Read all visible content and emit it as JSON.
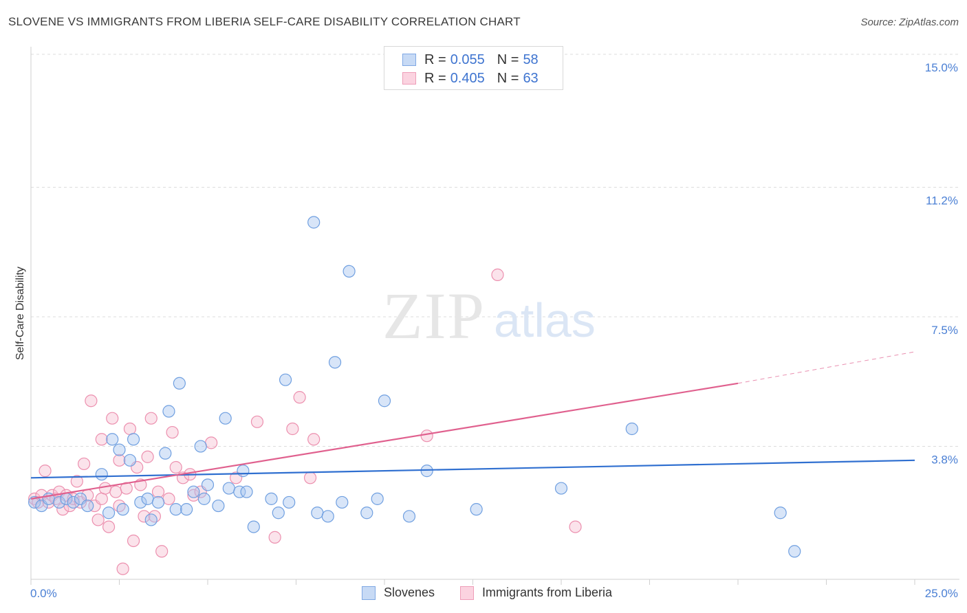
{
  "header": {
    "title": "SLOVENE VS IMMIGRANTS FROM LIBERIA SELF-CARE DISABILITY CORRELATION CHART",
    "source": "Source: ZipAtlas.com"
  },
  "watermark": {
    "zip": "ZIP",
    "atlas": "atlas"
  },
  "legend": {
    "rows": [
      {
        "r_label": "R =",
        "r_value": "0.055",
        "n_label": "N =",
        "n_value": "58",
        "color": "#a9c6ef"
      },
      {
        "r_label": "R =",
        "r_value": "0.405",
        "n_label": "N =",
        "n_value": "63",
        "color": "#f5b8cb"
      }
    ]
  },
  "bottom_legend": {
    "slovenes": "Slovenes",
    "liberia": "Immigrants from Liberia"
  },
  "colors": {
    "slovene_fill": "#a9c6ef",
    "slovene_stroke": "#6f9fe0",
    "slovene_line": "#2f6fd0",
    "liberia_fill": "#f7c2d3",
    "liberia_stroke": "#ec8fae",
    "liberia_line": "#e0608e",
    "tick": "#4a7fd4"
  },
  "chart_data": {
    "type": "scatter",
    "title": "SLOVENE VS IMMIGRANTS FROM LIBERIA SELF-CARE DISABILITY CORRELATION CHART",
    "xlabel": "",
    "ylabel": "Self-Care Disability",
    "xlim": [
      0,
      25
    ],
    "ylim": [
      0,
      15
    ],
    "x_tick_labels": [
      "0.0%",
      "25.0%"
    ],
    "y_ticks": [
      3.8,
      7.5,
      11.2,
      15.0
    ],
    "y_tick_labels": [
      "3.8%",
      "7.5%",
      "11.2%",
      "15.0%"
    ],
    "grid": "horizontal dashed",
    "legend_position": "top-center",
    "series": [
      {
        "name": "Slovenes",
        "points": [
          [
            0.1,
            2.2
          ],
          [
            0.3,
            2.1
          ],
          [
            0.5,
            2.3
          ],
          [
            0.8,
            2.2
          ],
          [
            1.0,
            2.3
          ],
          [
            1.2,
            2.2
          ],
          [
            1.4,
            2.3
          ],
          [
            1.6,
            2.1
          ],
          [
            2.0,
            3.0
          ],
          [
            2.2,
            1.9
          ],
          [
            2.3,
            4.0
          ],
          [
            2.5,
            3.7
          ],
          [
            2.6,
            2.0
          ],
          [
            2.8,
            3.4
          ],
          [
            2.9,
            4.0
          ],
          [
            3.1,
            2.2
          ],
          [
            3.3,
            2.3
          ],
          [
            3.4,
            1.7
          ],
          [
            3.6,
            2.2
          ],
          [
            3.8,
            3.6
          ],
          [
            3.9,
            4.8
          ],
          [
            4.1,
            2.0
          ],
          [
            4.2,
            5.6
          ],
          [
            4.4,
            2.0
          ],
          [
            4.6,
            2.5
          ],
          [
            4.8,
            3.8
          ],
          [
            4.9,
            2.3
          ],
          [
            5.0,
            2.7
          ],
          [
            5.3,
            2.1
          ],
          [
            5.5,
            4.6
          ],
          [
            5.6,
            2.6
          ],
          [
            5.9,
            2.5
          ],
          [
            6.0,
            3.1
          ],
          [
            6.1,
            2.5
          ],
          [
            6.3,
            1.5
          ],
          [
            6.8,
            2.3
          ],
          [
            7.0,
            1.9
          ],
          [
            7.2,
            5.7
          ],
          [
            7.3,
            2.2
          ],
          [
            8.0,
            10.2
          ],
          [
            8.1,
            1.9
          ],
          [
            8.4,
            1.8
          ],
          [
            8.6,
            6.2
          ],
          [
            8.8,
            2.2
          ],
          [
            9.0,
            8.8
          ],
          [
            9.5,
            1.9
          ],
          [
            9.8,
            2.3
          ],
          [
            10.0,
            5.1
          ],
          [
            10.7,
            1.8
          ],
          [
            11.2,
            3.1
          ],
          [
            12.6,
            2.0
          ],
          [
            15.0,
            2.6
          ],
          [
            17.0,
            4.3
          ],
          [
            21.2,
            1.9
          ],
          [
            21.6,
            0.8
          ]
        ]
      },
      {
        "name": "Immigrants from Liberia",
        "points": [
          [
            0.1,
            2.3
          ],
          [
            0.2,
            2.2
          ],
          [
            0.3,
            2.4
          ],
          [
            0.4,
            3.1
          ],
          [
            0.5,
            2.2
          ],
          [
            0.6,
            2.4
          ],
          [
            0.7,
            2.3
          ],
          [
            0.8,
            2.5
          ],
          [
            0.9,
            2.0
          ],
          [
            1.0,
            2.4
          ],
          [
            1.1,
            2.1
          ],
          [
            1.2,
            2.3
          ],
          [
            1.3,
            2.8
          ],
          [
            1.4,
            2.2
          ],
          [
            1.5,
            3.3
          ],
          [
            1.6,
            2.4
          ],
          [
            1.7,
            5.1
          ],
          [
            1.8,
            2.1
          ],
          [
            1.9,
            1.7
          ],
          [
            2.0,
            2.3
          ],
          [
            2.0,
            4.0
          ],
          [
            2.1,
            2.6
          ],
          [
            2.2,
            1.5
          ],
          [
            2.3,
            4.6
          ],
          [
            2.4,
            2.5
          ],
          [
            2.5,
            2.1
          ],
          [
            2.5,
            3.4
          ],
          [
            2.6,
            0.3
          ],
          [
            2.7,
            2.6
          ],
          [
            2.8,
            4.3
          ],
          [
            2.9,
            1.1
          ],
          [
            3.0,
            3.2
          ],
          [
            3.1,
            2.7
          ],
          [
            3.2,
            1.8
          ],
          [
            3.3,
            3.5
          ],
          [
            3.4,
            4.6
          ],
          [
            3.5,
            1.8
          ],
          [
            3.6,
            2.5
          ],
          [
            3.7,
            0.8
          ],
          [
            3.9,
            2.3
          ],
          [
            4.0,
            4.2
          ],
          [
            4.1,
            3.2
          ],
          [
            4.3,
            2.9
          ],
          [
            4.5,
            3.0
          ],
          [
            4.6,
            2.4
          ],
          [
            4.8,
            2.5
          ],
          [
            5.1,
            3.9
          ],
          [
            5.8,
            2.9
          ],
          [
            6.4,
            4.5
          ],
          [
            6.9,
            1.2
          ],
          [
            7.4,
            4.3
          ],
          [
            7.6,
            5.2
          ],
          [
            7.9,
            2.9
          ],
          [
            8.0,
            4.0
          ],
          [
            11.2,
            4.1
          ],
          [
            13.2,
            8.7
          ],
          [
            15.4,
            1.5
          ]
        ]
      }
    ],
    "trend_lines": [
      {
        "series": "Slovenes",
        "x": [
          0,
          25
        ],
        "y": [
          2.9,
          3.4
        ]
      },
      {
        "series": "Immigrants from Liberia",
        "x": [
          0,
          20
        ],
        "y": [
          2.3,
          5.6
        ],
        "dashed_extension_to_x": 25,
        "dashed_extension_y": 6.5
      }
    ]
  }
}
